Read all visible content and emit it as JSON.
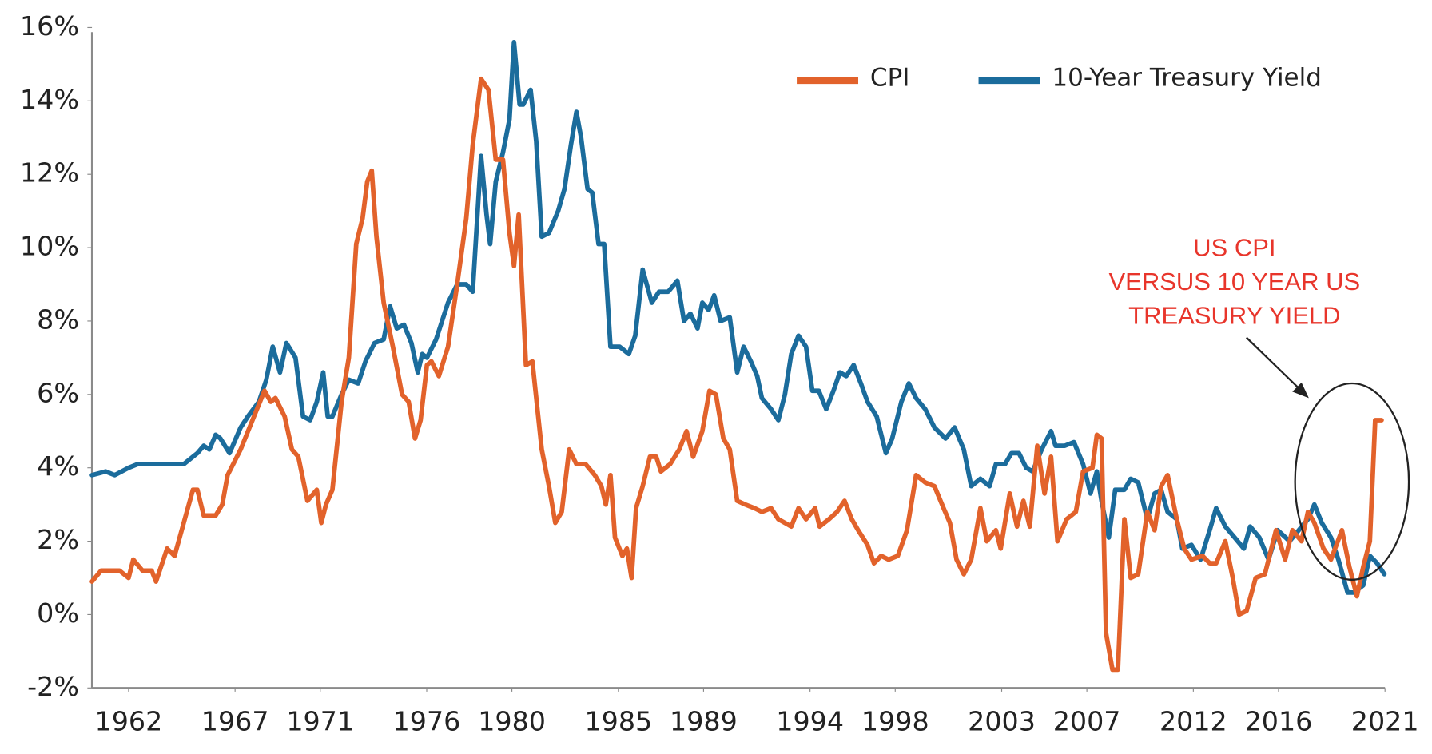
{
  "chart_data": {
    "type": "line",
    "series": [
      {
        "name": "10-Year Treasury Yield",
        "color": "#1b6c9c",
        "x": [
          1960.28,
          1960.92,
          1961.35,
          1962.0,
          1962.43,
          1963.08,
          1963.72,
          1964.59,
          1965.23,
          1965.53,
          1965.79,
          1966.09,
          1966.31,
          1966.74,
          1967.26,
          1967.6,
          1968.12,
          1968.47,
          1968.77,
          1969.11,
          1969.41,
          1969.84,
          1970.19,
          1970.53,
          1970.84,
          1971.14,
          1971.35,
          1971.57,
          1972.0,
          1972.34,
          1972.78,
          1973.12,
          1973.55,
          1973.98,
          1974.28,
          1974.59,
          1974.93,
          1975.28,
          1975.58,
          1975.79,
          1976.01,
          1976.44,
          1977.0,
          1977.43,
          1977.86,
          1978.16,
          1978.55,
          1978.81,
          1978.98,
          1979.24,
          1979.58,
          1979.89,
          1980.1,
          1980.36,
          1980.53,
          1980.88,
          1981.14,
          1981.4,
          1981.74,
          1982.17,
          1982.47,
          1982.77,
          1983.03,
          1983.25,
          1983.55,
          1983.77,
          1984.07,
          1984.33,
          1984.63,
          1985.06,
          1985.49,
          1985.79,
          1986.14,
          1986.57,
          1986.91,
          1987.34,
          1987.77,
          1988.08,
          1988.38,
          1988.72,
          1988.94,
          1989.24,
          1989.5,
          1989.8,
          1990.23,
          1990.58,
          1990.88,
          1991.22,
          1991.52,
          1991.74,
          1992.17,
          1992.51,
          1992.82,
          1993.12,
          1993.46,
          1993.81,
          1994.11,
          1994.41,
          1994.76,
          1995.1,
          1995.4,
          1995.7,
          1996.05,
          1996.39,
          1996.7,
          1997.13,
          1997.56,
          1997.86,
          1998.29,
          1998.64,
          1998.98,
          1999.41,
          1999.84,
          2000.36,
          2000.79,
          2001.22,
          2001.57,
          2002.0,
          2002.43,
          2002.73,
          2003.16,
          2003.46,
          2003.81,
          2004.15,
          2004.45,
          2004.88,
          2005.32,
          2005.53,
          2005.96,
          2006.39,
          2006.82,
          2007.17,
          2007.47,
          2007.69,
          2008.03,
          2008.33,
          2008.76,
          2009.06,
          2009.41,
          2009.84,
          2010.18,
          2010.49,
          2010.79,
          2011.22,
          2011.48,
          2011.91,
          2012.34,
          2012.77,
          2013.07,
          2013.5,
          2013.94,
          2014.37,
          2014.67,
          2015.1,
          2015.53,
          2015.96,
          2016.52,
          2016.95,
          2017.38,
          2017.68,
          2018.03,
          2018.46,
          2018.81,
          2019.24,
          2019.54,
          2019.98,
          2020.29,
          2020.63,
          2020.97
        ],
        "values": [
          3.8,
          3.9,
          3.8,
          4.0,
          4.1,
          4.1,
          4.1,
          4.1,
          4.4,
          4.6,
          4.5,
          4.9,
          4.8,
          4.4,
          5.1,
          5.4,
          5.8,
          6.4,
          7.3,
          6.6,
          7.4,
          7.0,
          5.4,
          5.3,
          5.8,
          6.6,
          5.4,
          5.4,
          6.0,
          6.4,
          6.3,
          6.9,
          7.4,
          7.5,
          8.4,
          7.8,
          7.9,
          7.4,
          6.6,
          7.1,
          7.0,
          7.5,
          8.5,
          9.0,
          9.0,
          8.8,
          12.5,
          10.9,
          10.1,
          11.8,
          12.6,
          13.5,
          15.6,
          13.9,
          13.9,
          14.3,
          12.9,
          10.3,
          10.4,
          11.0,
          11.6,
          12.8,
          13.7,
          13.0,
          11.6,
          11.5,
          10.1,
          10.1,
          7.3,
          7.3,
          7.1,
          7.6,
          9.4,
          8.5,
          8.8,
          8.8,
          9.1,
          8.0,
          8.2,
          7.8,
          8.5,
          8.3,
          8.7,
          8.0,
          8.1,
          6.6,
          7.3,
          6.9,
          6.5,
          5.9,
          5.6,
          5.3,
          6.0,
          7.1,
          7.6,
          7.3,
          6.1,
          6.1,
          5.6,
          6.1,
          6.6,
          6.5,
          6.8,
          6.3,
          5.8,
          5.4,
          4.4,
          4.8,
          5.8,
          6.3,
          5.9,
          5.6,
          5.1,
          4.8,
          5.1,
          4.5,
          3.5,
          3.7,
          3.5,
          4.1,
          4.1,
          4.4,
          4.4,
          4.0,
          3.9,
          4.5,
          5.0,
          4.6,
          4.6,
          4.7,
          4.1,
          3.3,
          3.9,
          3.1,
          2.1,
          3.4,
          3.4,
          3.7,
          3.6,
          2.6,
          3.3,
          3.4,
          2.8,
          2.6,
          1.8,
          1.9,
          1.5,
          2.3,
          2.9,
          2.4,
          2.1,
          1.8,
          2.4,
          2.1,
          1.5,
          2.3,
          2.0,
          2.3,
          2.6,
          3.0,
          2.5,
          2.1,
          1.5,
          0.6,
          0.6,
          0.8,
          1.6,
          1.4,
          1.1
        ]
      },
      {
        "name": "CPI",
        "color": "#e2622b",
        "x": [
          1960.28,
          1960.71,
          1961.57,
          1962.0,
          1962.22,
          1962.65,
          1963.08,
          1963.29,
          1963.81,
          1964.16,
          1964.59,
          1965.02,
          1965.23,
          1965.53,
          1966.09,
          1966.4,
          1966.65,
          1967.26,
          1968.03,
          1968.38,
          1968.68,
          1968.9,
          1969.33,
          1969.67,
          1969.97,
          1970.4,
          1970.84,
          1971.05,
          1971.27,
          1971.57,
          1972.0,
          1972.34,
          1972.69,
          1972.99,
          1973.21,
          1973.42,
          1973.64,
          1973.98,
          1974.41,
          1974.84,
          1975.15,
          1975.45,
          1975.71,
          1976.01,
          1976.22,
          1976.57,
          1977.0,
          1977.43,
          1977.86,
          1978.16,
          1978.55,
          1978.9,
          1979.24,
          1979.58,
          1979.89,
          1980.1,
          1980.32,
          1980.66,
          1980.96,
          1981.4,
          1981.74,
          1982.04,
          1982.34,
          1982.69,
          1983.03,
          1983.46,
          1983.89,
          1984.2,
          1984.41,
          1984.63,
          1984.84,
          1985.19,
          1985.4,
          1985.62,
          1985.83,
          1986.14,
          1986.48,
          1986.78,
          1987.0,
          1987.43,
          1987.86,
          1988.2,
          1988.51,
          1988.94,
          1989.28,
          1989.58,
          1989.93,
          1990.23,
          1990.58,
          1990.96,
          1991.39,
          1991.74,
          1992.17,
          1992.51,
          1992.82,
          1993.12,
          1993.46,
          1993.81,
          1994.24,
          1994.45,
          1994.89,
          1995.27,
          1995.62,
          1995.96,
          1996.26,
          1996.7,
          1997.0,
          1997.34,
          1997.69,
          1998.12,
          1998.55,
          1998.98,
          1999.41,
          1999.84,
          2000.27,
          2000.57,
          2000.88,
          2001.22,
          2001.57,
          2002.0,
          2002.3,
          2002.73,
          2002.95,
          2003.38,
          2003.72,
          2004.02,
          2004.32,
          2004.67,
          2005.01,
          2005.32,
          2005.62,
          2006.05,
          2006.48,
          2006.82,
          2007.26,
          2007.47,
          2007.69,
          2007.9,
          2008.2,
          2008.46,
          2008.76,
          2009.06,
          2009.41,
          2009.84,
          2010.18,
          2010.49,
          2010.79,
          2011.22,
          2011.57,
          2011.91,
          2012.43,
          2012.77,
          2013.07,
          2013.5,
          2013.85,
          2014.15,
          2014.5,
          2014.93,
          2015.36,
          2015.88,
          2016.31,
          2016.65,
          2017.08,
          2017.38,
          2017.68,
          2018.11,
          2018.46,
          2018.98,
          2019.33,
          2019.68,
          2019.98,
          2020.29,
          2020.54,
          2020.84
        ],
        "values": [
          0.9,
          1.2,
          1.2,
          1.0,
          1.5,
          1.2,
          1.2,
          0.9,
          1.8,
          1.6,
          2.5,
          3.4,
          3.4,
          2.7,
          2.7,
          3.0,
          3.8,
          4.5,
          5.6,
          6.1,
          5.8,
          5.9,
          5.4,
          4.5,
          4.3,
          3.1,
          3.4,
          2.5,
          3.0,
          3.4,
          5.8,
          7.0,
          10.1,
          10.8,
          11.8,
          12.1,
          10.3,
          8.5,
          7.3,
          6.0,
          5.8,
          4.8,
          5.3,
          6.8,
          6.9,
          6.5,
          7.3,
          9.0,
          10.8,
          12.8,
          14.6,
          14.3,
          12.4,
          12.4,
          10.4,
          9.5,
          10.9,
          6.8,
          6.9,
          4.5,
          3.5,
          2.5,
          2.8,
          4.5,
          4.1,
          4.1,
          3.8,
          3.5,
          3.0,
          3.8,
          2.1,
          1.6,
          1.8,
          1.0,
          2.9,
          3.5,
          4.3,
          4.3,
          3.9,
          4.1,
          4.5,
          5.0,
          4.3,
          5.0,
          6.1,
          6.0,
          4.8,
          4.5,
          3.1,
          3.0,
          2.9,
          2.8,
          2.9,
          2.6,
          2.5,
          2.4,
          2.9,
          2.6,
          2.9,
          2.4,
          2.6,
          2.8,
          3.1,
          2.6,
          2.3,
          1.9,
          1.4,
          1.6,
          1.5,
          1.6,
          2.3,
          3.8,
          3.6,
          3.5,
          2.9,
          2.5,
          1.5,
          1.1,
          1.5,
          2.9,
          2.0,
          2.3,
          1.8,
          3.3,
          2.4,
          3.1,
          2.4,
          4.6,
          3.3,
          4.3,
          2.0,
          2.6,
          2.8,
          3.9,
          4.0,
          4.9,
          4.8,
          -0.5,
          -1.5,
          -1.5,
          2.6,
          1.0,
          1.1,
          2.8,
          2.3,
          3.5,
          3.8,
          2.6,
          1.8,
          1.5,
          1.6,
          1.4,
          1.4,
          2.0,
          1.0,
          0.0,
          0.1,
          1.0,
          1.1,
          2.3,
          1.5,
          2.3,
          2.0,
          2.8,
          2.5,
          1.8,
          1.5,
          2.3,
          1.3,
          0.5,
          1.3,
          2.0,
          5.3,
          5.3
        ]
      }
    ],
    "xlim": [
      1960.28,
      2021
    ],
    "xticks": [
      1962,
      1967,
      1971,
      1976,
      1980,
      1985,
      1989,
      1994,
      1998,
      2003,
      2007,
      2012,
      2016,
      2021
    ],
    "ylim": [
      -2,
      16
    ],
    "yticks": [
      {
        "value": -2,
        "label": "-2%"
      },
      {
        "value": 0,
        "label": "0%"
      },
      {
        "value": 2,
        "label": "2%"
      },
      {
        "value": 4,
        "label": "4%"
      },
      {
        "value": 6,
        "label": "6%"
      },
      {
        "value": 8,
        "label": "8%"
      },
      {
        "value": 10,
        "label": "10%"
      },
      {
        "value": 12,
        "label": "12%"
      },
      {
        "value": 14,
        "label": "14%"
      },
      {
        "value": 16,
        "label": "16%"
      }
    ],
    "grid": false,
    "legend": "top-right",
    "annotation": [
      "US CPI",
      "VERSUS 10 YEAR US",
      "TREASURY YIELD"
    ]
  }
}
